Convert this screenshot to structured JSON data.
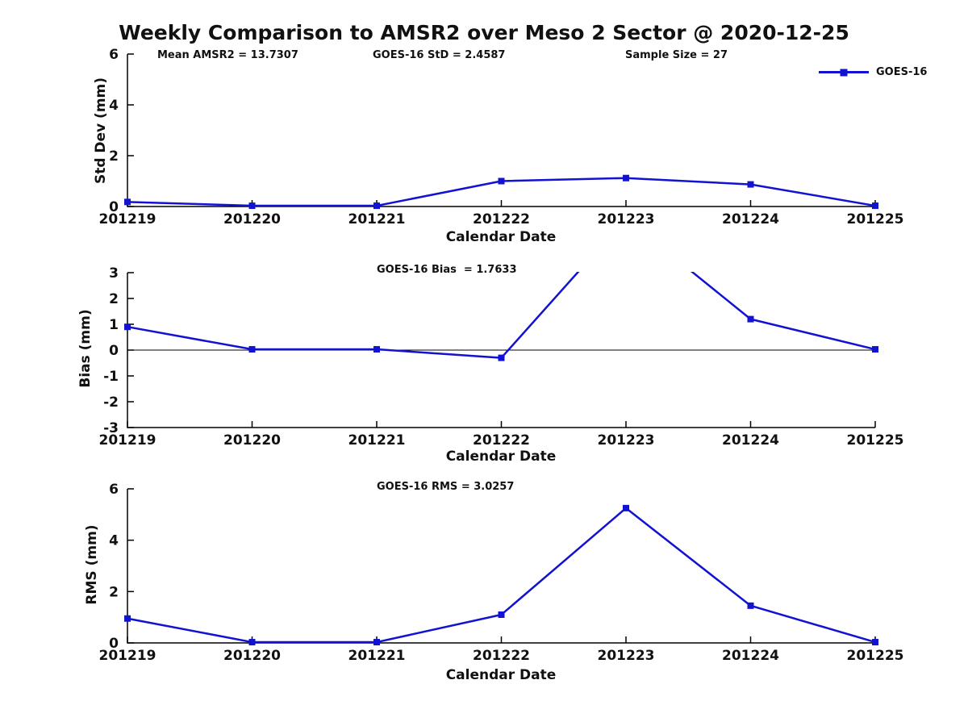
{
  "title": "Weekly Comparison to AMSR2 over Meso 2 Sector @ 2020-12-25",
  "legend": {
    "label": "GOES-16",
    "position": "top-right"
  },
  "colors": {
    "series": "#1212d2",
    "axis": "#000000",
    "text": "#111111",
    "background": "#ffffff"
  },
  "chart_data": [
    {
      "type": "line",
      "id": "std-dev",
      "ylabel": "Std Dev (mm)",
      "xlabel": "Calendar Date",
      "ylim": [
        0,
        6
      ],
      "yticks": [
        0,
        2,
        4,
        6
      ],
      "grid": false,
      "zero_line": false,
      "categories": [
        "201219",
        "201220",
        "201221",
        "201222",
        "201223",
        "201224",
        "201225"
      ],
      "series": [
        {
          "name": "GOES-16",
          "values": [
            0.18,
            0.03,
            0.03,
            1.0,
            1.12,
            0.87,
            0.03
          ]
        }
      ],
      "annotations": [
        "Mean AMSR2 = 13.7307",
        "GOES-16 StD = 2.4587",
        "Sample Size = 27"
      ],
      "legend_entries": [
        "GOES-16"
      ]
    },
    {
      "type": "line",
      "id": "bias",
      "ylabel": "Bias (mm)",
      "xlabel": "Calendar Date",
      "ylim": [
        -3,
        3
      ],
      "yticks": [
        -3,
        -2,
        -1,
        0,
        1,
        2,
        3
      ],
      "grid": false,
      "zero_line": true,
      "categories": [
        "201219",
        "201220",
        "201221",
        "201222",
        "201223",
        "201224",
        "201225"
      ],
      "series": [
        {
          "name": "GOES-16",
          "values": [
            0.9,
            0.03,
            0.03,
            -0.3,
            5.1,
            1.2,
            0.03
          ]
        }
      ],
      "annotations": [
        "GOES-16 Bias  = 1.7633"
      ],
      "note": "value at 201223 (~5.1) lies above ylim and is clipped by the axes"
    },
    {
      "type": "line",
      "id": "rms",
      "ylabel": "RMS (mm)",
      "xlabel": "Calendar Date",
      "ylim": [
        0,
        6
      ],
      "yticks": [
        0,
        2,
        4,
        6
      ],
      "grid": false,
      "zero_line": false,
      "categories": [
        "201219",
        "201220",
        "201221",
        "201222",
        "201223",
        "201224",
        "201225"
      ],
      "series": [
        {
          "name": "GOES-16",
          "values": [
            0.95,
            0.03,
            0.03,
            1.1,
            5.25,
            1.45,
            0.03
          ]
        }
      ],
      "annotations": [
        "GOES-16 RMS = 3.0257"
      ]
    }
  ]
}
